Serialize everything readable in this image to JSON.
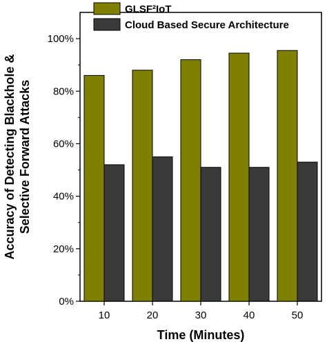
{
  "chart_data": {
    "type": "bar",
    "categories": [
      "10",
      "20",
      "30",
      "40",
      "50"
    ],
    "series": [
      {
        "name": "GLSF²IoT",
        "values": [
          86,
          88,
          92,
          94.5,
          95.5
        ],
        "color": "#808000"
      },
      {
        "name": "Cloud Based Secure Architecture",
        "values": [
          52,
          55,
          51,
          51,
          53
        ],
        "color": "#3a3a3a"
      }
    ],
    "xlabel": "Time (Minutes)",
    "ylabel_line1": "Accuracy of Detecting Blackhole &",
    "ylabel_line2": "Selective Forward Attacks",
    "ylim": [
      0,
      110
    ],
    "yticks": [
      0,
      20,
      40,
      60,
      80,
      100
    ],
    "ytick_labels": [
      "0%",
      "20%",
      "40%",
      "60%",
      "80%",
      "100%"
    ],
    "legend_position": "top-right",
    "grid": false
  }
}
